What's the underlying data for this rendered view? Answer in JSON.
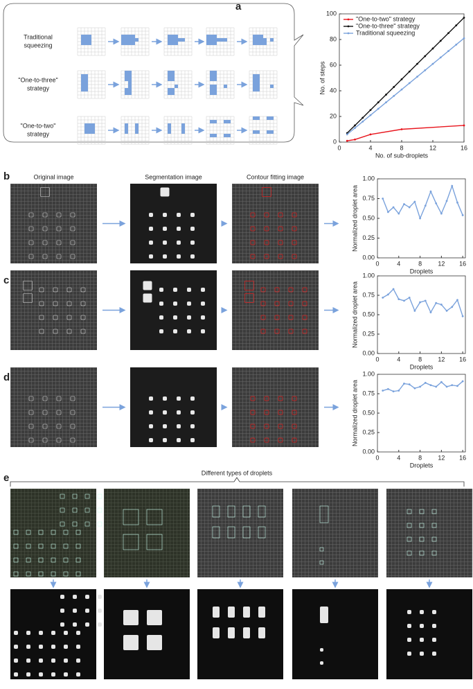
{
  "figure": {
    "panel_labels": [
      "a",
      "b",
      "c",
      "d",
      "e"
    ],
    "schematic_rows": [
      [
        "Traditional",
        "squeezing"
      ],
      [
        "\"One-to-three\"",
        "strategy"
      ],
      [
        "\"One-to-two\"",
        "strategy"
      ]
    ],
    "column_headers": [
      "Original image",
      "Segmentation image",
      "Contour fitting image"
    ],
    "e_title": "Different types of droplets"
  },
  "chart_data": [
    {
      "type": "line",
      "xlabel": "No. of sub-droplets",
      "ylabel": "No. of steps",
      "xlim": [
        0,
        16
      ],
      "xticks": [
        0,
        4,
        8,
        12,
        16
      ],
      "ylim": [
        0,
        100
      ],
      "yticks": [
        0,
        20,
        40,
        60,
        80,
        100
      ],
      "legend": "upper-left",
      "series": [
        {
          "name": "\"One-to-two\" strategy",
          "color": "#e8141c",
          "x": [
            1,
            2,
            4,
            8,
            16
          ],
          "values": [
            1,
            2,
            6,
            10,
            13
          ]
        },
        {
          "name": "\"One-to-three\" strategy",
          "color": "#111111",
          "x": [
            1,
            2,
            3,
            4,
            5,
            6,
            7,
            8,
            9,
            10,
            11,
            12,
            13,
            14,
            15,
            16
          ],
          "values": [
            7,
            13,
            19,
            25,
            31,
            37,
            43,
            49,
            55,
            61,
            67,
            73,
            79,
            85,
            91,
            97
          ]
        },
        {
          "name": "Traditional squeezing",
          "color": "#7aa2dc",
          "x": [
            1,
            2,
            3,
            4,
            5,
            6,
            7,
            8,
            9,
            10,
            11,
            12,
            13,
            14,
            15,
            16
          ],
          "values": [
            6,
            11,
            16,
            21,
            26,
            31,
            36,
            41,
            46,
            51,
            56,
            61,
            66,
            71,
            76,
            81
          ]
        }
      ]
    },
    {
      "type": "line",
      "xlabel": "Droplets",
      "ylabel": "Normalized droplet area",
      "xlim": [
        0,
        16.5
      ],
      "xticks": [
        0,
        4,
        8,
        12,
        16
      ],
      "ylim": [
        0,
        1
      ],
      "yticks": [
        {
          "value": 0,
          "label": "0.00"
        },
        {
          "value": 0.25,
          "label": "0.25"
        },
        {
          "value": 0.5,
          "label": "0.50"
        },
        {
          "value": 0.75,
          "label": "0.75"
        },
        {
          "value": 1,
          "label": "1.00"
        }
      ],
      "x": [
        1,
        2,
        3,
        4,
        5,
        6,
        7,
        8,
        9,
        10,
        11,
        12,
        13,
        14,
        15,
        16
      ],
      "series": [
        {
          "color": "#7aa2dc",
          "values": [
            0.75,
            0.58,
            0.64,
            0.56,
            0.68,
            0.64,
            0.71,
            0.5,
            0.66,
            0.84,
            0.69,
            0.56,
            0.72,
            0.91,
            0.7,
            0.54
          ]
        }
      ]
    },
    {
      "type": "line",
      "xlabel": "Droplets",
      "ylabel": "Normalized droplet area",
      "xlim": [
        0,
        16.5
      ],
      "xticks": [
        0,
        4,
        8,
        12,
        16
      ],
      "ylim": [
        0,
        1
      ],
      "yticks": [
        {
          "value": 0,
          "label": "0.00"
        },
        {
          "value": 0.25,
          "label": "0.25"
        },
        {
          "value": 0.5,
          "label": "0.50"
        },
        {
          "value": 0.75,
          "label": "0.75"
        },
        {
          "value": 1,
          "label": "1.00"
        }
      ],
      "x": [
        1,
        2,
        3,
        4,
        5,
        6,
        7,
        8,
        9,
        10,
        11,
        12,
        13,
        14,
        15,
        16
      ],
      "series": [
        {
          "color": "#7aa2dc",
          "values": [
            0.72,
            0.76,
            0.83,
            0.7,
            0.68,
            0.72,
            0.55,
            0.66,
            0.68,
            0.53,
            0.65,
            0.63,
            0.55,
            0.6,
            0.69,
            0.48
          ]
        }
      ]
    },
    {
      "type": "line",
      "xlabel": "Droplets",
      "ylabel": "Normalized droplet area",
      "xlim": [
        0,
        16.5
      ],
      "xticks": [
        0,
        4,
        8,
        12,
        16
      ],
      "ylim": [
        0,
        1
      ],
      "yticks": [
        {
          "value": 0,
          "label": "0.00"
        },
        {
          "value": 0.25,
          "label": "0.25"
        },
        {
          "value": 0.5,
          "label": "0.50"
        },
        {
          "value": 0.75,
          "label": "0.75"
        },
        {
          "value": 1,
          "label": "1.00"
        }
      ],
      "x": [
        1,
        2,
        3,
        4,
        5,
        6,
        7,
        8,
        9,
        10,
        11,
        12,
        13,
        14,
        15,
        16
      ],
      "series": [
        {
          "color": "#7aa2dc",
          "values": [
            0.79,
            0.81,
            0.78,
            0.79,
            0.88,
            0.87,
            0.82,
            0.84,
            0.89,
            0.86,
            0.84,
            0.9,
            0.84,
            0.86,
            0.85,
            0.91
          ]
        }
      ]
    }
  ]
}
